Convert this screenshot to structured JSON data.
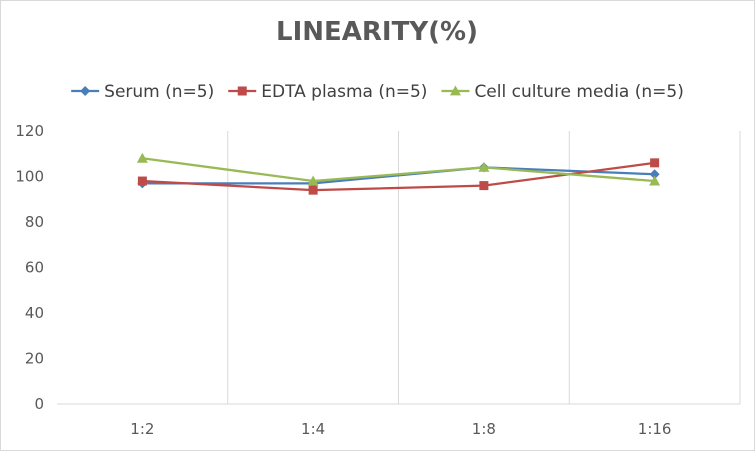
{
  "chart_data": {
    "type": "line",
    "title": "LINEARITY(%)",
    "xlabel": "",
    "ylabel": "",
    "categories": [
      "1:2",
      "1:4",
      "1:8",
      "1:16"
    ],
    "ylim": [
      0,
      120
    ],
    "yticks": [
      0,
      20,
      40,
      60,
      80,
      100,
      120
    ],
    "grid": "vertical",
    "legend_position": "top",
    "series": [
      {
        "name": "Serum (n=5)",
        "values": [
          97,
          97,
          104,
          101
        ],
        "color": "#4a7ebb",
        "marker": "diamond"
      },
      {
        "name": "EDTA plasma (n=5)",
        "values": [
          98,
          94,
          96,
          106
        ],
        "color": "#be4b48",
        "marker": "square"
      },
      {
        "name": "Cell culture media (n=5)",
        "values": [
          108,
          98,
          104,
          98
        ],
        "color": "#98b954",
        "marker": "triangle"
      }
    ]
  }
}
